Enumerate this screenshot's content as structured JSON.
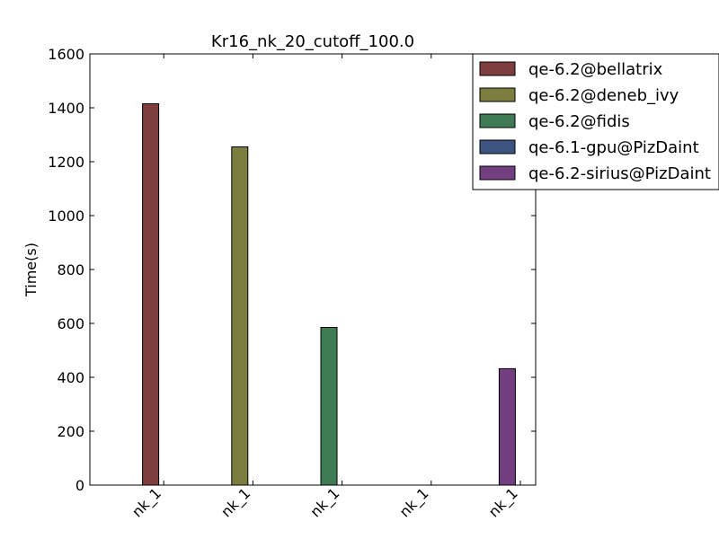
{
  "chart_data": {
    "type": "bar",
    "title": "Kr16_nk_20_cutoff_100.0",
    "xlabel": "",
    "ylabel": "Time(s)",
    "ylim": [
      0,
      1600
    ],
    "yticks": [
      0,
      200,
      400,
      600,
      800,
      1000,
      1200,
      1400,
      1600
    ],
    "categories": [
      "nk_1",
      "nk_1",
      "nk_1",
      "nk_1",
      "nk_1"
    ],
    "legend_position": "top-right",
    "grid": false,
    "series": [
      {
        "name": "qe-6.2@bellatrix",
        "color": "#7f3e3e",
        "value": 1415
      },
      {
        "name": "qe-6.2@deneb_ivy",
        "color": "#7b7e3e",
        "value": 1255
      },
      {
        "name": "qe-6.2@fidis",
        "color": "#3e7b55",
        "value": 585
      },
      {
        "name": "qe-6.1-gpu@PizDaint",
        "color": "#3e5480",
        "value": 0
      },
      {
        "name": "qe-6.2-sirius@PizDaint",
        "color": "#733f80",
        "value": 432
      }
    ]
  }
}
